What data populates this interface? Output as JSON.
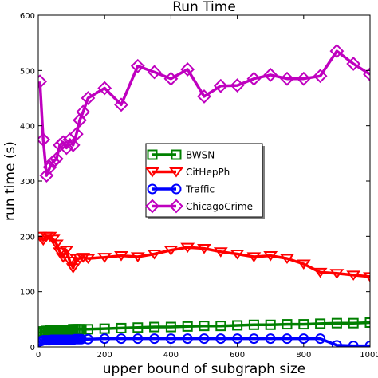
{
  "chart_data": {
    "type": "line",
    "title": "Run Time",
    "xlabel": "upper bound of subgraph size",
    "ylabel": "run time (s)",
    "xlim": [
      0,
      1000
    ],
    "ylim": [
      0,
      600
    ],
    "xticks": [
      0,
      200,
      400,
      600,
      800,
      1000
    ],
    "yticks": [
      0,
      100,
      200,
      300,
      400,
      500,
      600
    ],
    "grid": false,
    "legend_position": "center",
    "series": [
      {
        "name": "BWSN",
        "color": "#008000",
        "marker": "square",
        "x": [
          5,
          10,
          15,
          20,
          25,
          30,
          35,
          40,
          45,
          50,
          55,
          60,
          65,
          70,
          75,
          80,
          85,
          90,
          95,
          100,
          105,
          110,
          115,
          120,
          125,
          130,
          150,
          200,
          250,
          300,
          350,
          400,
          450,
          500,
          550,
          600,
          650,
          700,
          750,
          800,
          850,
          900,
          950,
          1000
        ],
        "y": [
          25,
          27,
          28,
          28,
          29,
          29,
          30,
          30,
          30,
          30,
          31,
          31,
          31,
          31,
          31,
          31,
          31,
          31,
          31,
          31,
          32,
          32,
          32,
          32,
          32,
          32,
          32,
          33,
          34,
          35,
          36,
          36,
          37,
          38,
          38,
          39,
          40,
          40,
          41,
          41,
          42,
          43,
          43,
          44
        ]
      },
      {
        "name": "CitHepPh",
        "color": "#ff0000",
        "marker": "triangle-down",
        "x": [
          5,
          15,
          25,
          35,
          45,
          55,
          65,
          75,
          85,
          95,
          105,
          115,
          125,
          135,
          150,
          200,
          250,
          300,
          350,
          400,
          450,
          500,
          550,
          600,
          650,
          700,
          750,
          800,
          850,
          900,
          950,
          1000
        ],
        "y": [
          200,
          193,
          200,
          200,
          195,
          186,
          172,
          162,
          175,
          155,
          143,
          160,
          160,
          162,
          160,
          162,
          165,
          163,
          168,
          175,
          180,
          178,
          172,
          168,
          163,
          165,
          160,
          150,
          135,
          133,
          130,
          127
        ]
      },
      {
        "name": "Traffic",
        "color": "#0000ff",
        "marker": "circle",
        "x": [
          5,
          10,
          15,
          20,
          25,
          30,
          35,
          40,
          45,
          50,
          55,
          60,
          65,
          70,
          75,
          80,
          85,
          90,
          95,
          100,
          105,
          110,
          115,
          120,
          125,
          130,
          150,
          200,
          250,
          300,
          350,
          400,
          450,
          500,
          550,
          600,
          650,
          700,
          750,
          800,
          850,
          900,
          950,
          1000
        ],
        "y": [
          10,
          11,
          12,
          12,
          12,
          12,
          12,
          13,
          13,
          13,
          13,
          13,
          13,
          13,
          13,
          13,
          13,
          13,
          13,
          13,
          13,
          14,
          14,
          14,
          14,
          14,
          14,
          15,
          15,
          15,
          15,
          15,
          15,
          15,
          15,
          15,
          15,
          15,
          15,
          15,
          15,
          3,
          2,
          2
        ]
      },
      {
        "name": "ChicagoCrime",
        "color": "#bf00bf",
        "marker": "diamond",
        "x": [
          5,
          15,
          25,
          35,
          45,
          55,
          65,
          75,
          85,
          95,
          105,
          115,
          125,
          135,
          150,
          200,
          250,
          300,
          350,
          400,
          450,
          500,
          550,
          600,
          650,
          700,
          750,
          800,
          850,
          900,
          950,
          1000
        ],
        "y": [
          480,
          375,
          310,
          325,
          335,
          340,
          365,
          370,
          360,
          375,
          365,
          385,
          410,
          425,
          450,
          468,
          438,
          508,
          497,
          485,
          502,
          453,
          472,
          473,
          485,
          492,
          485,
          485,
          490,
          535,
          512,
          493
        ]
      }
    ]
  }
}
